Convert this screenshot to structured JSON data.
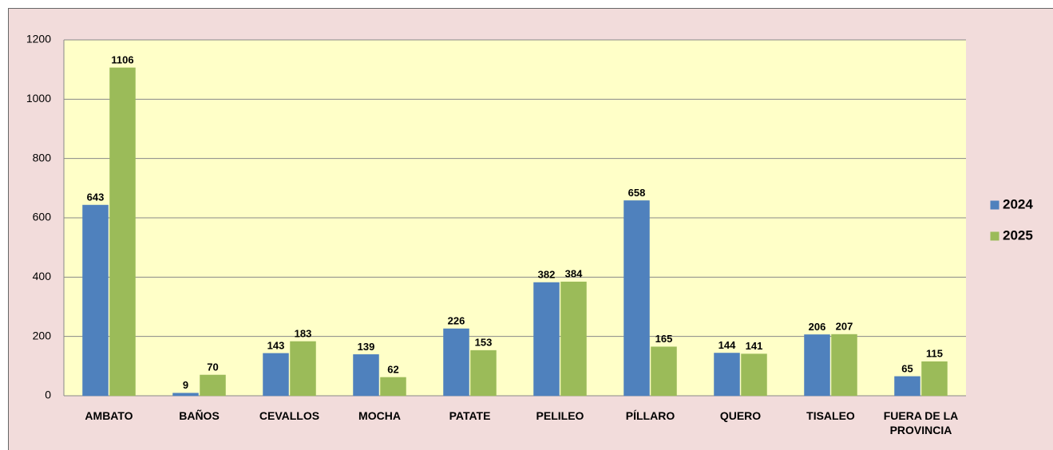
{
  "chart_data": {
    "type": "bar",
    "categories": [
      "AMBATO",
      "BAÑOS",
      "CEVALLOS",
      "MOCHA",
      "PATATE",
      "PELILEO",
      "PÍLLARO",
      "QUERO",
      "TISALEO",
      "FUERA DE LA PROVINCIA"
    ],
    "series": [
      {
        "name": "2024",
        "color": "#4f81bd",
        "values": [
          643,
          9,
          143,
          139,
          226,
          382,
          658,
          144,
          206,
          65
        ]
      },
      {
        "name": "2025",
        "color": "#9bbb59",
        "values": [
          1106,
          70,
          183,
          62,
          153,
          384,
          165,
          141,
          207,
          115
        ]
      }
    ],
    "ylim": [
      0,
      1200
    ],
    "yticks": [
      0,
      200,
      400,
      600,
      800,
      1000,
      1200
    ],
    "grid": true,
    "legend": "right"
  }
}
